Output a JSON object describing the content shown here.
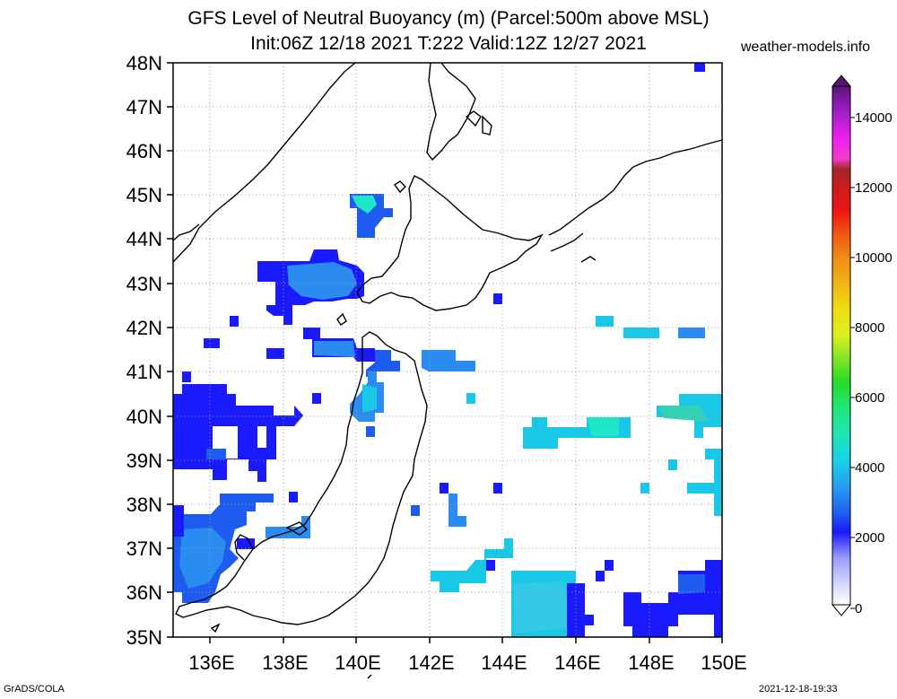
{
  "header": {
    "title_line1": "GFS Level of Neutral Buoyancy (m) (Parcel:500m above MSL)",
    "title_line2": "Init:06Z 12/18 2021 T:222 Valid:12Z 12/27 2021",
    "site": "weather-models.info"
  },
  "footer": {
    "credit": "GrADS/COLA",
    "timestamp": "2021-12-18-19:33"
  },
  "map": {
    "lon_range": [
      135,
      150
    ],
    "lat_range": [
      35,
      48
    ],
    "lat_labels": [
      "35N",
      "36N",
      "37N",
      "38N",
      "39N",
      "40N",
      "41N",
      "42N",
      "43N",
      "44N",
      "45N",
      "46N",
      "47N",
      "48N"
    ],
    "lon_labels": [
      "136E",
      "138E",
      "140E",
      "142E",
      "144E",
      "146E",
      "148E",
      "150E"
    ],
    "colors": {
      "blue_dark": "#1a1aff",
      "blue": "#1e5cf0",
      "blue_mid": "#2a8cf0",
      "cyan": "#19c8e6",
      "aqua": "#1ee6c8",
      "teal": "#33d2b4"
    }
  },
  "colorbar": {
    "labels": [
      "0",
      "2000",
      "4000",
      "6000",
      "8000",
      "10000",
      "12000",
      "14000"
    ]
  }
}
